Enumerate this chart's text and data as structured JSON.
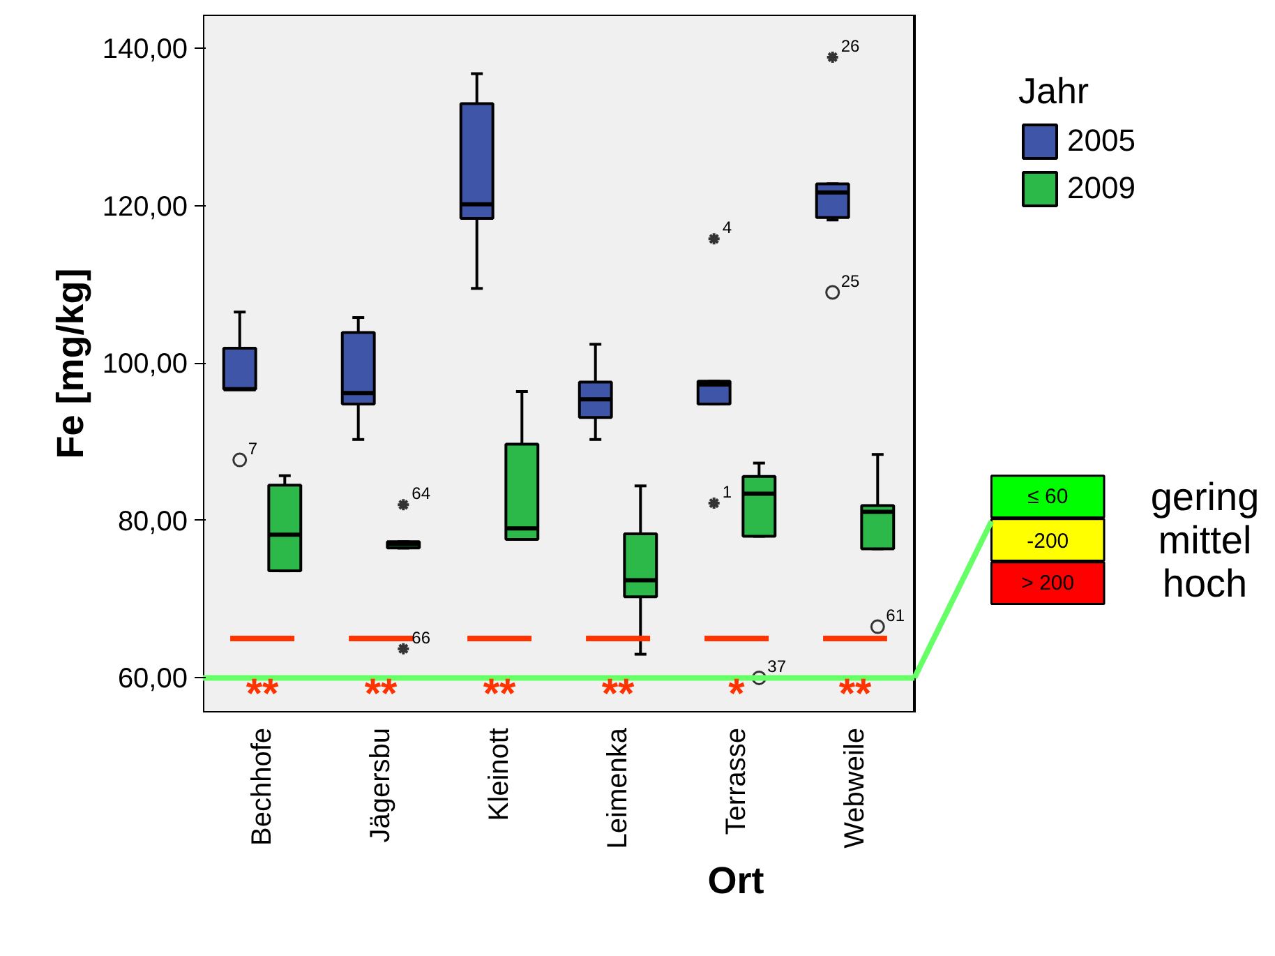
{
  "chart_data": {
    "type": "box",
    "xlabel": "Ort",
    "ylabel": "Fe [mg/kg]",
    "legend_title": "Jahr",
    "legend": "top right",
    "grid": false,
    "categories": [
      "Bechhofe",
      "Jägersbu",
      "Kleinott",
      "Leimenka",
      "Terrasse",
      "Webweile"
    ],
    "ylim": [
      55.6,
      144.3
    ],
    "yticks": [
      {
        "value": 60,
        "label": "60,00"
      },
      {
        "value": 80,
        "label": "80,00"
      },
      {
        "value": 100,
        "label": "100,00"
      },
      {
        "value": 120,
        "label": "120,00"
      },
      {
        "value": 140,
        "label": "140,00"
      }
    ],
    "series": [
      {
        "name": "2005",
        "color": "#3f56a8",
        "boxes": [
          {
            "low": 96.7,
            "q1": 96.7,
            "median": 96.7,
            "q3": 101.9,
            "high": 106.5,
            "outliers": [
              87.7
            ]
          },
          {
            "low": 90.3,
            "q1": 94.8,
            "median": 96.2,
            "q3": 103.9,
            "high": 105.8
          },
          {
            "low": 109.5,
            "q1": 118.4,
            "median": 120.2,
            "q3": 133.0,
            "high": 136.8
          },
          {
            "low": 90.3,
            "q1": 93.1,
            "median": 95.4,
            "q3": 97.6,
            "high": 102.4
          },
          {
            "low": 94.8,
            "q1": 94.8,
            "median": 97.3,
            "q3": 97.7,
            "high": 97.7,
            "outliers": [
              115.8,
              82.2
            ]
          },
          {
            "low": 118.2,
            "q1": 118.5,
            "median": 121.7,
            "q3": 122.8,
            "high": 122.8,
            "outliers": [
              138.9,
              109.0
            ]
          }
        ]
      },
      {
        "name": "2009",
        "color": "#2db84a",
        "boxes": [
          {
            "low": 73.6,
            "q1": 73.6,
            "median": 78.2,
            "q3": 84.5,
            "high": 85.7
          },
          {
            "low": 76.5,
            "q1": 76.5,
            "median": 77.0,
            "q3": 77.3,
            "high": 77.3,
            "outliers": [
              82.0,
              63.7
            ]
          },
          {
            "low": 77.6,
            "q1": 77.6,
            "median": 79.0,
            "q3": 89.7,
            "high": 96.4
          },
          {
            "low": 63.0,
            "q1": 70.3,
            "median": 72.4,
            "q3": 78.3,
            "high": 84.4
          },
          {
            "low": 78.0,
            "q1": 78.0,
            "median": 83.4,
            "q3": 85.6,
            "high": 87.3,
            "outliers": [
              60.0
            ]
          },
          {
            "low": 76.4,
            "q1": 76.4,
            "median": 81.1,
            "q3": 81.9,
            "high": 88.4,
            "outliers": [
              66.5
            ]
          }
        ]
      }
    ],
    "ref_lines": [
      {
        "axis": "y",
        "value": 65,
        "color": "#ff3300",
        "line_style": "dashed"
      },
      {
        "axis": "y",
        "value": 60,
        "color": "#66ff66"
      }
    ],
    "annotations": [
      "7",
      "4",
      "1",
      "26",
      "25",
      "64",
      "66",
      "37",
      "61",
      "**",
      "**",
      "**",
      "**",
      "*",
      "**",
      "≤ 60",
      "-200",
      "> 200",
      "gering",
      "mittel",
      "hoch"
    ]
  }
}
